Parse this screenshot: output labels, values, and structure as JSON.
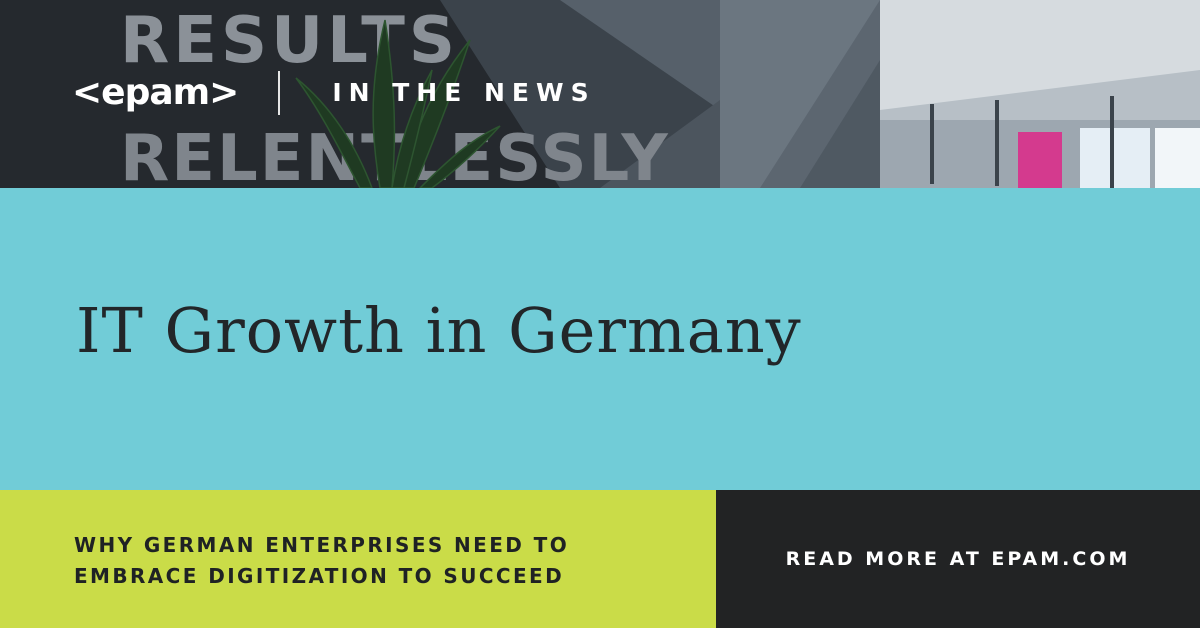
{
  "brand": {
    "logo_text": "<epam>",
    "kicker": "IN THE NEWS"
  },
  "headline": "IT Growth in Germany",
  "subheadline": {
    "line1": "WHY GERMAN ENTERPRISES NEED TO",
    "line2": "EMBRACE DIGITIZATION TO SUCCEED"
  },
  "cta": {
    "label": "READ MORE AT EPAM.COM"
  },
  "photo": {
    "wall_text_line1": "RESULTS",
    "wall_text_line2": "RELENTLESSLY"
  },
  "colors": {
    "headline_band": "#71ccd7",
    "subheadline_band": "#cadc48",
    "cta_band": "#222324",
    "text_dark": "#222629",
    "text_light": "#ffffff",
    "office_accent": "#d43a8e"
  }
}
